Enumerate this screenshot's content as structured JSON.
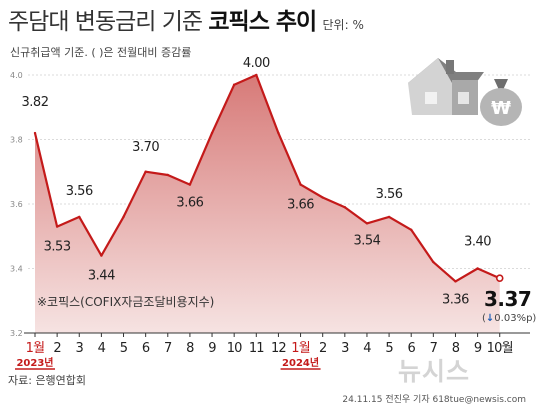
{
  "title": {
    "main": "주담대 변동금리 기준",
    "bold": "코픽스 추이",
    "unit": "단위: %"
  },
  "subtitle": "신규취급액 기준. ( )은 전월대비 증감률",
  "note": "※코픽스(COFIX자금조달비용지수)",
  "source": "자료: 은행연합회",
  "credit": "24.11.15 전진우 기자 618tue@newsis.com",
  "watermark": "뉴시스",
  "latest": {
    "value": "3.37",
    "arrow": "↓",
    "change": "0.03%p",
    "open": "(",
    "close": ")"
  },
  "colors": {
    "line": "#c41a1a",
    "area_top": "#d77a78",
    "area_bottom": "#f6e3e2",
    "highlight": "#c41a1a"
  },
  "chart_data": {
    "type": "area",
    "x": [
      "2023-01",
      "2023-02",
      "2023-03",
      "2023-04",
      "2023-05",
      "2023-06",
      "2023-07",
      "2023-08",
      "2023-09",
      "2023-10",
      "2023-11",
      "2023-12",
      "2024-01",
      "2024-02",
      "2024-03",
      "2024-04",
      "2024-05",
      "2024-06",
      "2024-07",
      "2024-08",
      "2024-09",
      "2024-10"
    ],
    "tick_labels": [
      "1월",
      "2",
      "3",
      "4",
      "5",
      "6",
      "7",
      "8",
      "9",
      "10",
      "11",
      "12",
      "1월",
      "2",
      "3",
      "4",
      "5",
      "6",
      "7",
      "8",
      "9",
      "10월"
    ],
    "values": [
      3.82,
      3.53,
      3.56,
      3.44,
      3.56,
      3.7,
      3.69,
      3.66,
      3.82,
      3.97,
      4.0,
      3.82,
      3.66,
      3.62,
      3.59,
      3.54,
      3.56,
      3.52,
      3.42,
      3.36,
      3.4,
      3.37
    ],
    "data_labels": [
      "3.82",
      "3.53",
      "3.56",
      "3.44",
      "",
      "3.70",
      "",
      "3.66",
      "",
      "",
      "4.00",
      "",
      "3.66",
      "",
      "",
      "3.54",
      "3.56",
      "",
      "",
      "3.36",
      "3.40",
      ""
    ],
    "year_labels": [
      {
        "index": 0,
        "label": "2023년"
      },
      {
        "index": 12,
        "label": "2024년"
      }
    ],
    "ylim": [
      3.2,
      4.0
    ],
    "yticks": [
      "3.2",
      "3.4",
      "3.6",
      "3.8",
      "4.0"
    ],
    "grid": true,
    "title": "",
    "xlabel": "",
    "ylabel": ""
  }
}
